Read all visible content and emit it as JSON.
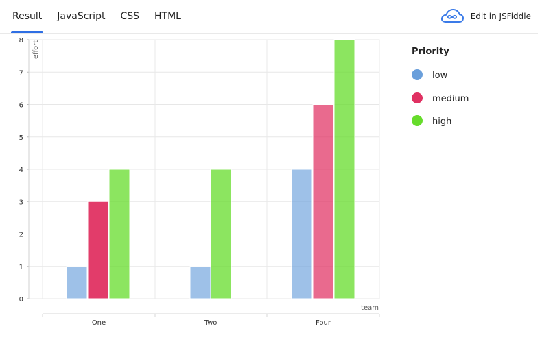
{
  "tabs": [
    {
      "label": "Result",
      "active": true
    },
    {
      "label": "JavaScript",
      "active": false
    },
    {
      "label": "CSS",
      "active": false
    },
    {
      "label": "HTML",
      "active": false
    }
  ],
  "edit_link": {
    "label": "Edit in JSFiddle",
    "icon": "cloud-icon"
  },
  "chart_data": {
    "type": "bar",
    "categories": [
      "One",
      "Two",
      "Four"
    ],
    "series": [
      {
        "name": "low",
        "values": [
          1,
          1,
          4
        ],
        "color": "#6a9fdb"
      },
      {
        "name": "medium",
        "values": [
          3,
          null,
          6
        ],
        "color": "#e03162"
      },
      {
        "name": "high",
        "values": [
          4,
          4,
          8
        ],
        "color": "#66dc2b"
      }
    ],
    "title": "",
    "xlabel": "team",
    "ylabel": "effort",
    "ylim": [
      0,
      8
    ],
    "yticks": [
      0,
      1,
      2,
      3,
      4,
      5,
      6,
      7,
      8
    ],
    "legend": {
      "title": "Priority",
      "placement": "right"
    },
    "grid": true
  }
}
